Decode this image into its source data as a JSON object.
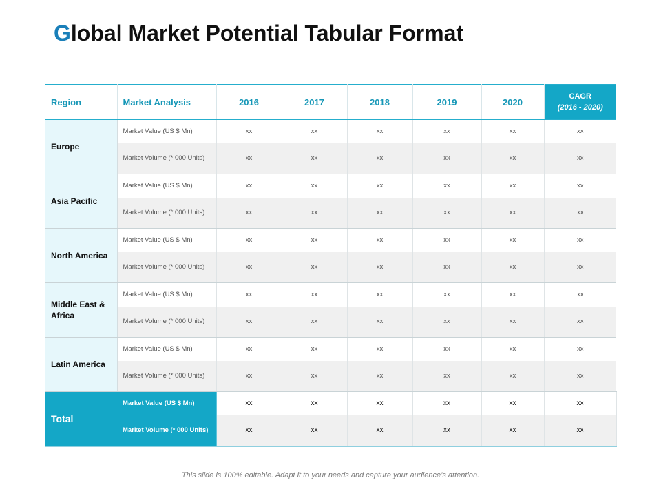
{
  "title": {
    "first_letter": "G",
    "rest": "lobal Market Potential Tabular Format"
  },
  "colors": {
    "accent": "#1a7fb9",
    "header_text": "#1697b7",
    "cagr_fill": "#14a7c7",
    "region_fill": "#e6f7fb"
  },
  "table": {
    "headers": {
      "region": "Region",
      "analysis": "Market Analysis",
      "years": [
        "2016",
        "2017",
        "2018",
        "2019",
        "2020"
      ],
      "cagr_label": "CAGR",
      "cagr_range": "(2016  -  2020)"
    },
    "rows": [
      {
        "region": "Europe",
        "metrics": [
          {
            "label": "Market Value (US $ Mn)",
            "values": [
              "xx",
              "xx",
              "xx",
              "xx",
              "xx",
              "xx"
            ]
          },
          {
            "label": "Market Volume (* 000 Units)",
            "values": [
              "xx",
              "xx",
              "xx",
              "xx",
              "xx",
              "xx"
            ]
          }
        ]
      },
      {
        "region": "Asia Pacific",
        "metrics": [
          {
            "label": "Market Value (US $ Mn)",
            "values": [
              "xx",
              "xx",
              "xx",
              "xx",
              "xx",
              "xx"
            ]
          },
          {
            "label": "Market Volume (* 000 Units)",
            "values": [
              "xx",
              "xx",
              "xx",
              "xx",
              "xx",
              "xx"
            ]
          }
        ]
      },
      {
        "region": "North America",
        "metrics": [
          {
            "label": "Market Value (US $ Mn)",
            "values": [
              "xx",
              "xx",
              "xx",
              "xx",
              "xx",
              "xx"
            ]
          },
          {
            "label": "Market Volume (* 000 Units)",
            "values": [
              "xx",
              "xx",
              "xx",
              "xx",
              "xx",
              "xx"
            ]
          }
        ]
      },
      {
        "region": "Middle East & Africa",
        "metrics": [
          {
            "label": "Market Value (US $ Mn)",
            "values": [
              "xx",
              "xx",
              "xx",
              "xx",
              "xx",
              "xx"
            ]
          },
          {
            "label": "Market Volume (* 000 Units)",
            "values": [
              "xx",
              "xx",
              "xx",
              "xx",
              "xx",
              "xx"
            ]
          }
        ]
      },
      {
        "region": "Latin America",
        "metrics": [
          {
            "label": "Market Value (US $ Mn)",
            "values": [
              "xx",
              "xx",
              "xx",
              "xx",
              "xx",
              "xx"
            ]
          },
          {
            "label": "Market Volume (* 000 Units)",
            "values": [
              "xx",
              "xx",
              "xx",
              "xx",
              "xx",
              "xx"
            ]
          }
        ]
      }
    ],
    "total": {
      "label": "Total",
      "metrics": [
        {
          "label": "Market Value (US $ Mn)",
          "values": [
            "xx",
            "xx",
            "xx",
            "xx",
            "xx",
            "xx"
          ]
        },
        {
          "label": "Market Volume (* 000 Units)",
          "values": [
            "xx",
            "xx",
            "xx",
            "xx",
            "xx",
            "xx"
          ]
        }
      ]
    }
  },
  "footnote": "This slide is 100% editable. Adapt it to your needs and capture your audience’s attention."
}
